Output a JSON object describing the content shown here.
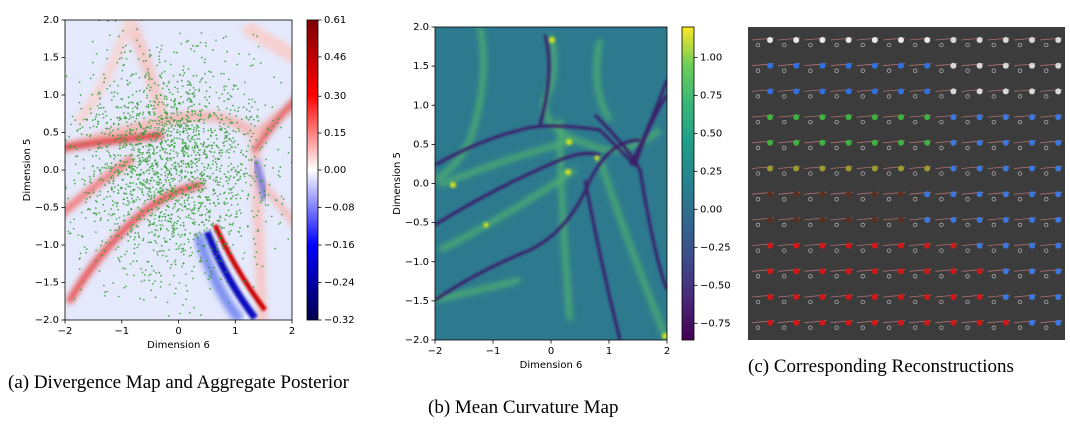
{
  "chart_data": [
    {
      "type": "heatmap",
      "xlabel": "Dimension 6",
      "ylabel": "Dimension 5",
      "xlim": [
        -2,
        2
      ],
      "ylim": [
        -2,
        2
      ],
      "xticks": [
        {
          "value": -2,
          "label": "−2"
        },
        {
          "value": -1,
          "label": "−1"
        },
        0,
        1,
        2
      ],
      "yticks": [
        {
          "value": 2,
          "label": "2.0"
        },
        {
          "value": 1.5,
          "label": "1.5"
        },
        {
          "value": 1,
          "label": "1.0"
        },
        {
          "value": 0.5,
          "label": "0.5"
        },
        {
          "value": 0,
          "label": "0.0"
        },
        {
          "value": -0.5,
          "label": "−0.5"
        },
        {
          "value": -1,
          "label": "−1.0"
        },
        {
          "value": -1.5,
          "label": "−1.5"
        },
        {
          "value": -2,
          "label": "−2.0"
        }
      ],
      "colorbar": {
        "cmap": "seismic",
        "norm": "two-slope",
        "center": 0,
        "lim": [
          -0.32,
          0.61
        ],
        "ticks": [
          0.61,
          0.46,
          {
            "value": 0.3,
            "label": "0.30"
          },
          0.15,
          {
            "value": 0,
            "label": "0.00"
          },
          {
            "value": -0.08,
            "label": "−0.08"
          },
          {
            "value": -0.16,
            "label": "−0.16"
          },
          {
            "value": -0.24,
            "label": "−0.24"
          },
          {
            "value": -0.32,
            "label": "−0.32"
          }
        ]
      },
      "caption": "(a) Divergence Map and Aggregate Posterior"
    },
    {
      "type": "heatmap",
      "xlabel": "Dimension 6",
      "ylabel": "Dimension 5",
      "xlim": [
        -2,
        2
      ],
      "ylim": [
        -2,
        2
      ],
      "xticks": [
        {
          "value": -2,
          "label": "−2"
        },
        {
          "value": -1,
          "label": "−1"
        },
        0,
        1,
        2
      ],
      "yticks": [
        {
          "value": 2,
          "label": "2.0"
        },
        {
          "value": 1.5,
          "label": "1.5"
        },
        {
          "value": 1,
          "label": "1.0"
        },
        {
          "value": 0.5,
          "label": "0.5"
        },
        {
          "value": 0,
          "label": "0.0"
        },
        {
          "value": -0.5,
          "label": "−0.5"
        },
        {
          "value": -1,
          "label": "−1.0"
        },
        {
          "value": -1.5,
          "label": "−1.5"
        },
        {
          "value": -2,
          "label": "−2.0"
        }
      ],
      "colorbar": {
        "cmap": "viridis",
        "norm": "linear",
        "lim": [
          -0.86,
          1.2
        ],
        "ticks": [
          {
            "value": 1,
            "label": "1.00"
          },
          0.75,
          {
            "value": 0.5,
            "label": "0.50"
          },
          0.25,
          {
            "value": 0,
            "label": "0.00"
          },
          {
            "value": -0.25,
            "label": "−0.25"
          },
          {
            "value": -0.5,
            "label": "−0.50"
          },
          {
            "value": -0.75,
            "label": "−0.75"
          }
        ]
      },
      "caption": "(b) Mean Curvature Map"
    },
    {
      "type": "image",
      "caption": "(c) Corresponding Reconstructions"
    }
  ]
}
